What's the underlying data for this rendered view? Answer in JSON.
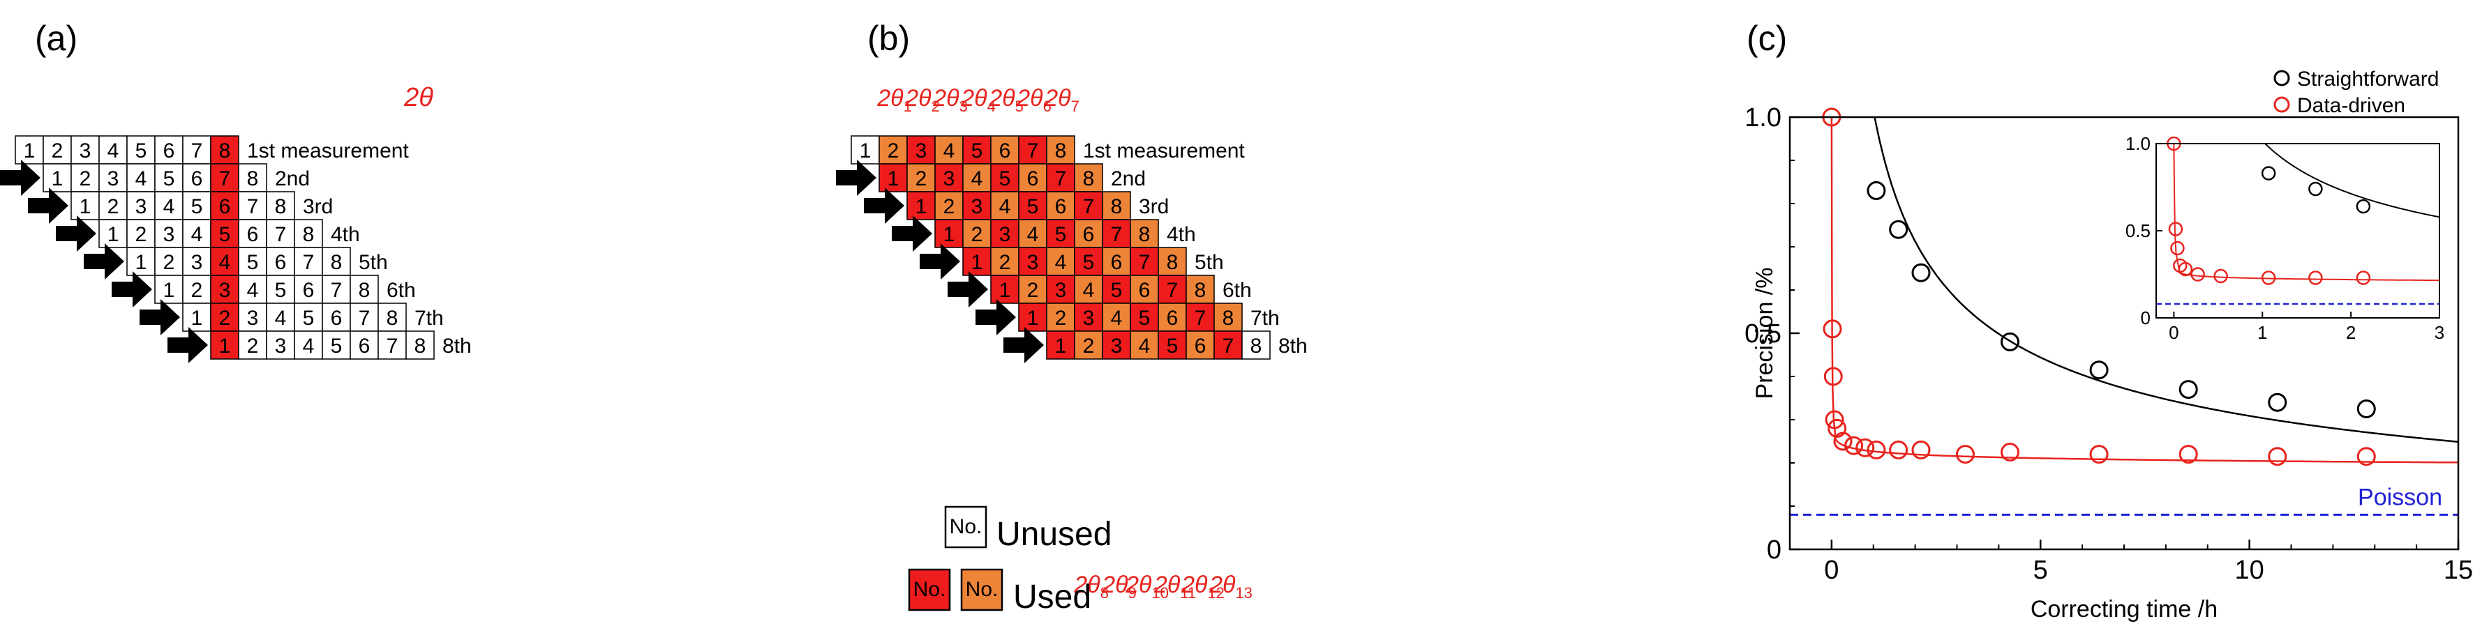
{
  "panel_a": {
    "label": "(a)",
    "top_label": "2",
    "top_label_theta": "θ",
    "rows": [
      {
        "cells": [
          "1",
          "2",
          "3",
          "4",
          "5",
          "6",
          "7",
          "8"
        ],
        "text": "1st measurement"
      },
      {
        "cells": [
          "1",
          "2",
          "3",
          "4",
          "5",
          "6",
          "7",
          "8"
        ],
        "text": "2nd"
      },
      {
        "cells": [
          "1",
          "2",
          "3",
          "4",
          "5",
          "6",
          "7",
          "8"
        ],
        "text": "3rd"
      },
      {
        "cells": [
          "1",
          "2",
          "3",
          "4",
          "5",
          "6",
          "7",
          "8"
        ],
        "text": "4th"
      },
      {
        "cells": [
          "1",
          "2",
          "3",
          "4",
          "5",
          "6",
          "7",
          "8"
        ],
        "text": "5th"
      },
      {
        "cells": [
          "1",
          "2",
          "3",
          "4",
          "5",
          "6",
          "7",
          "8"
        ],
        "text": "6th"
      },
      {
        "cells": [
          "1",
          "2",
          "3",
          "4",
          "5",
          "6",
          "7",
          "8"
        ],
        "text": "7th"
      },
      {
        "cells": [
          "1",
          "2",
          "3",
          "4",
          "5",
          "6",
          "7",
          "8"
        ],
        "text": "8th"
      }
    ]
  },
  "panel_b": {
    "label": "(b)",
    "rows": [
      {
        "cells": [
          "1",
          "2",
          "3",
          "4",
          "5",
          "6",
          "7",
          "8"
        ],
        "text": "1st measurement"
      },
      {
        "cells": [
          "1",
          "2",
          "3",
          "4",
          "5",
          "6",
          "7",
          "8"
        ],
        "text": "2nd"
      },
      {
        "cells": [
          "1",
          "2",
          "3",
          "4",
          "5",
          "6",
          "7",
          "8"
        ],
        "text": "3rd"
      },
      {
        "cells": [
          "1",
          "2",
          "3",
          "4",
          "5",
          "6",
          "7",
          "8"
        ],
        "text": "4th"
      },
      {
        "cells": [
          "1",
          "2",
          "3",
          "4",
          "5",
          "6",
          "7",
          "8"
        ],
        "text": "5th"
      },
      {
        "cells": [
          "1",
          "2",
          "3",
          "4",
          "5",
          "6",
          "7",
          "8"
        ],
        "text": "6th"
      },
      {
        "cells": [
          "1",
          "2",
          "3",
          "4",
          "5",
          "6",
          "7",
          "8"
        ],
        "text": "7th"
      },
      {
        "cells": [
          "1",
          "2",
          "3",
          "4",
          "5",
          "6",
          "7",
          "8"
        ],
        "text": "8th"
      }
    ],
    "top_thetas": [
      "1",
      "2",
      "3",
      "4",
      "5",
      "6",
      "7"
    ],
    "bottom_thetas": [
      "8",
      "9",
      "10",
      "11",
      "12",
      "13"
    ],
    "theta_prefix": "2",
    "theta_symbol": "θ",
    "legend": {
      "box_text": "No.",
      "unused": "Unused",
      "used": "Used"
    }
  },
  "panel_c": {
    "label": "(c)",
    "chart_data": {
      "type": "scatter",
      "xlabel": "Correcting time /h",
      "ylabel": "Precision /%",
      "xlim": [
        -1,
        15
      ],
      "ylim": [
        0,
        1.0
      ],
      "xticks": [
        "0",
        "5",
        "10",
        "15"
      ],
      "yticks": [
        "0",
        "0.5",
        "1.0"
      ],
      "legend_position": "top-right",
      "series": [
        {
          "name": "Straightforward",
          "color": "#000000",
          "x": [
            1.07,
            1.6,
            2.14,
            4.27,
            6.4,
            8.54,
            10.67,
            12.8
          ],
          "y": [
            0.83,
            0.74,
            0.64,
            0.48,
            0.415,
            0.37,
            0.34,
            0.325
          ]
        },
        {
          "name": "Data-driven",
          "color": "#e8231d",
          "x": [
            0,
            0.02,
            0.04,
            0.07,
            0.13,
            0.27,
            0.53,
            0.8,
            1.07,
            1.6,
            2.14,
            3.2,
            4.27,
            6.4,
            8.54,
            10.67,
            12.8
          ],
          "y": [
            1.0,
            0.51,
            0.4,
            0.3,
            0.28,
            0.25,
            0.24,
            0.235,
            0.23,
            0.23,
            0.23,
            0.22,
            0.225,
            0.22,
            0.22,
            0.215,
            0.215
          ]
        }
      ],
      "reference_line": {
        "name": "Poisson",
        "y": 0.08,
        "color": "#1f22d6"
      },
      "inset": {
        "xlim": [
          -0.2,
          3
        ],
        "ylim": [
          0,
          1.0
        ],
        "xticks": [
          "0",
          "1",
          "2",
          "3"
        ],
        "yticks": [
          "0",
          "0.5",
          "1.0"
        ],
        "series": [
          {
            "name": "Straightforward",
            "x": [
              1.07,
              1.6,
              2.14
            ],
            "y": [
              0.83,
              0.74,
              0.64
            ]
          },
          {
            "name": "Data-driven",
            "x": [
              0,
              0.02,
              0.04,
              0.07,
              0.13,
              0.27,
              0.53,
              1.07,
              1.6,
              2.14
            ],
            "y": [
              1.0,
              0.51,
              0.4,
              0.3,
              0.28,
              0.25,
              0.24,
              0.23,
              0.23,
              0.23
            ]
          }
        ]
      }
    }
  }
}
